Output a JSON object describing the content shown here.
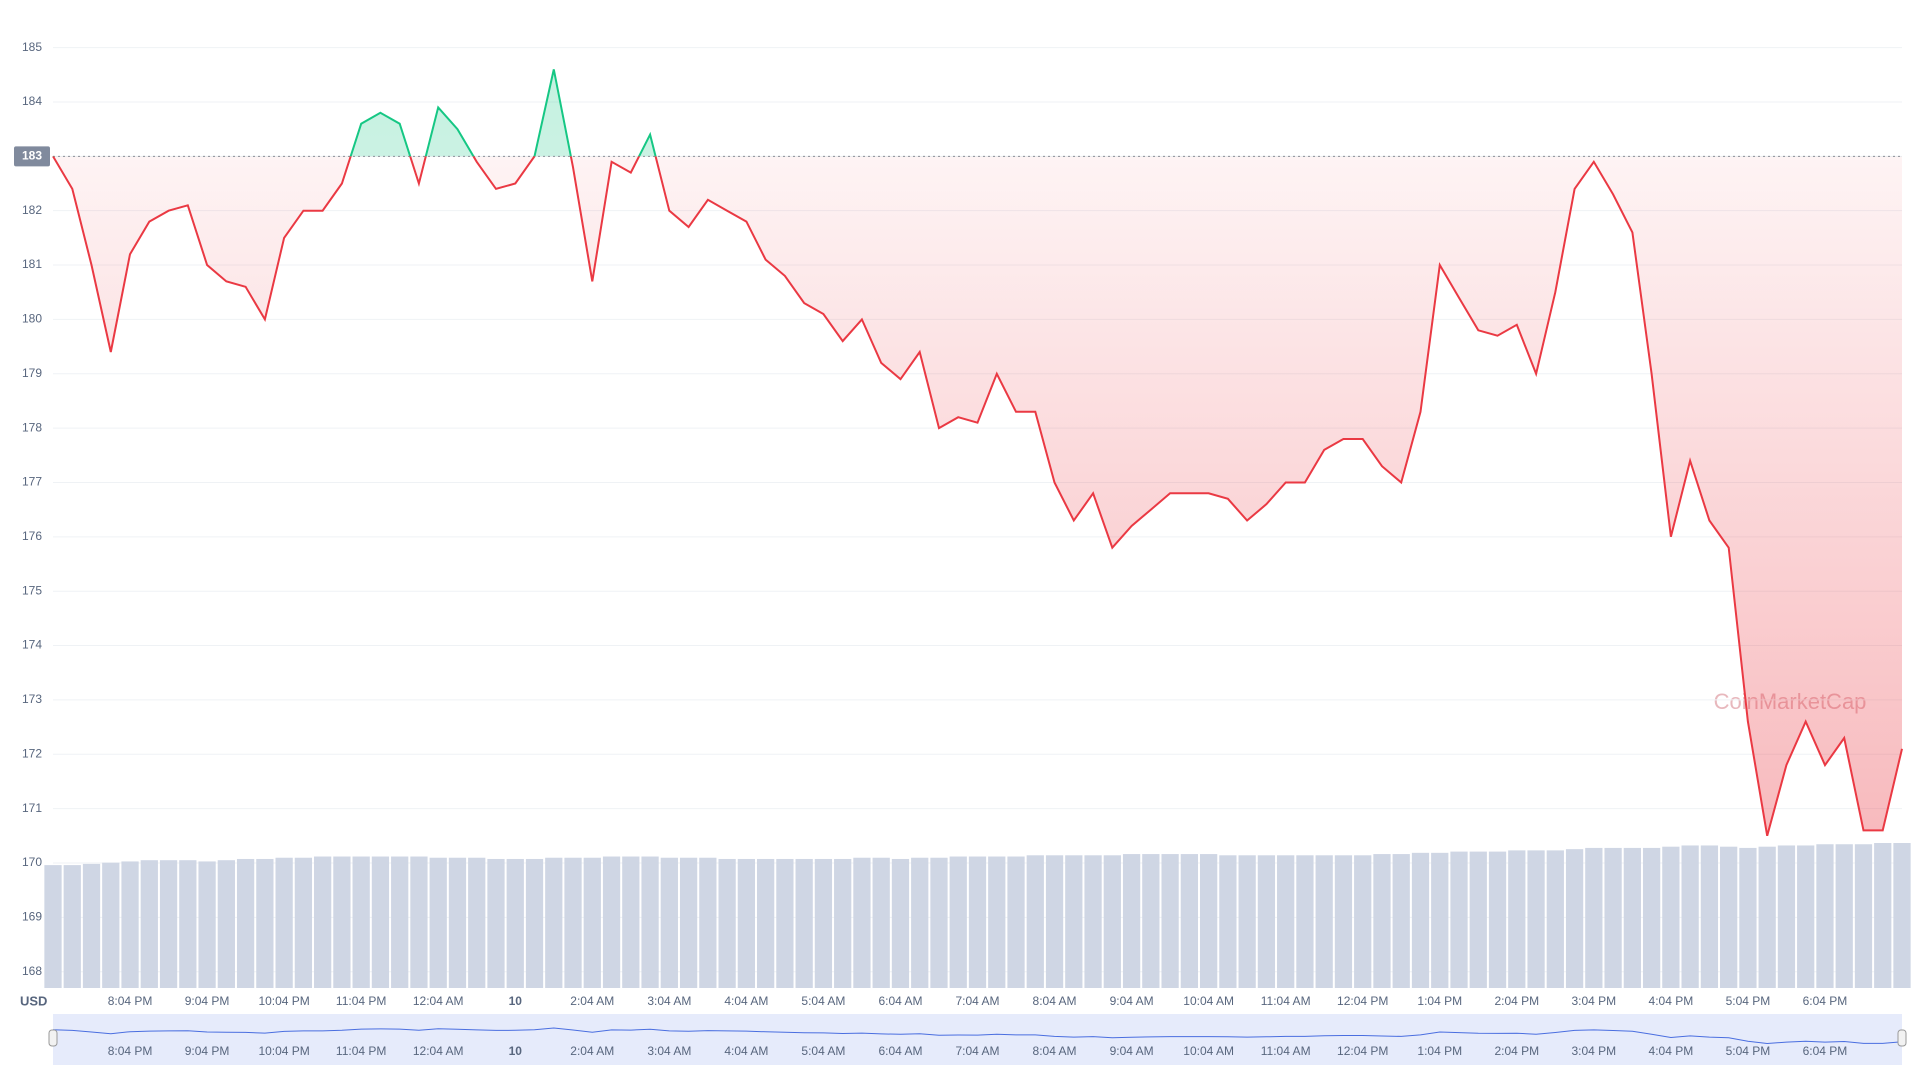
{
  "chart_data": {
    "type": "line",
    "categories": [
      null,
      null,
      null,
      null,
      "8:04 PM",
      null,
      null,
      null,
      "9:04 PM",
      null,
      null,
      null,
      "10:04 PM",
      null,
      null,
      null,
      "11:04 PM",
      null,
      null,
      null,
      "12:04 AM",
      null,
      null,
      null,
      "10",
      null,
      null,
      null,
      "2:04 AM",
      null,
      null,
      null,
      "3:04 AM",
      null,
      null,
      null,
      "4:04 AM",
      null,
      null,
      null,
      "5:04 AM",
      null,
      null,
      null,
      "6:04 AM",
      null,
      null,
      null,
      "7:04 AM",
      null,
      null,
      null,
      "8:04 AM",
      null,
      null,
      null,
      "9:04 AM",
      null,
      null,
      null,
      "10:04 AM",
      null,
      null,
      null,
      "11:04 AM",
      null,
      null,
      null,
      "12:04 PM",
      null,
      null,
      null,
      "1:04 PM",
      null,
      null,
      null,
      "2:04 PM",
      null,
      null,
      null,
      "3:04 PM",
      null,
      null,
      null,
      "4:04 PM",
      null,
      null,
      null,
      "5:04 PM",
      null,
      null,
      null,
      "6:04 PM",
      null,
      null,
      null,
      null
    ],
    "values": [
      183.0,
      182.4,
      181.0,
      179.4,
      181.2,
      181.8,
      182.0,
      182.1,
      181.0,
      180.7,
      180.6,
      180.0,
      181.5,
      182.0,
      182.0,
      182.5,
      183.6,
      183.8,
      183.6,
      182.5,
      183.9,
      183.5,
      182.9,
      182.4,
      182.5,
      183.0,
      184.6,
      182.8,
      180.7,
      182.9,
      182.7,
      183.4,
      182.0,
      181.7,
      182.2,
      182.0,
      181.8,
      181.1,
      180.8,
      180.3,
      180.1,
      179.6,
      180.0,
      179.2,
      178.9,
      179.4,
      178.0,
      178.2,
      178.1,
      179.0,
      178.3,
      178.3,
      177.0,
      176.3,
      176.8,
      175.8,
      176.2,
      176.5,
      176.8,
      176.8,
      176.8,
      176.7,
      176.3,
      176.6,
      177.0,
      177.0,
      177.6,
      177.8,
      177.8,
      177.3,
      177.0,
      178.3,
      181.0,
      180.4,
      179.8,
      179.7,
      179.9,
      179.0,
      180.5,
      182.4,
      182.9,
      182.3,
      181.6,
      179.0,
      176.0,
      177.4,
      176.3,
      175.8,
      172.6,
      170.5,
      171.8,
      172.6,
      171.8,
      172.3,
      170.6,
      170.6,
      172.1
    ],
    "volume": [
      100,
      100,
      101,
      102,
      103,
      104,
      104,
      104,
      103,
      104,
      105,
      105,
      106,
      106,
      107,
      107,
      107,
      107,
      107,
      107,
      106,
      106,
      106,
      105,
      105,
      105,
      106,
      106,
      106,
      107,
      107,
      107,
      106,
      106,
      106,
      105,
      105,
      105,
      105,
      105,
      105,
      105,
      106,
      106,
      105,
      106,
      106,
      107,
      107,
      107,
      107,
      108,
      108,
      108,
      108,
      108,
      109,
      109,
      109,
      109,
      109,
      108,
      108,
      108,
      108,
      108,
      108,
      108,
      108,
      109,
      109,
      110,
      110,
      111,
      111,
      111,
      112,
      112,
      112,
      113,
      114,
      114,
      114,
      114,
      115,
      116,
      116,
      115,
      114,
      115,
      116,
      116,
      117,
      117,
      117,
      118,
      118
    ],
    "baseline": 183,
    "up_color": "#16c784",
    "down_color": "#ea3943",
    "volume_color": "#cfd6e4",
    "ylim": [
      167.7,
      185.6
    ],
    "yticks": [
      168,
      169,
      170,
      171,
      172,
      173,
      174,
      175,
      176,
      177,
      178,
      179,
      180,
      181,
      182,
      183,
      184,
      185
    ],
    "currency": "USD",
    "watermark": "CoinMarketCap",
    "grid": true
  }
}
